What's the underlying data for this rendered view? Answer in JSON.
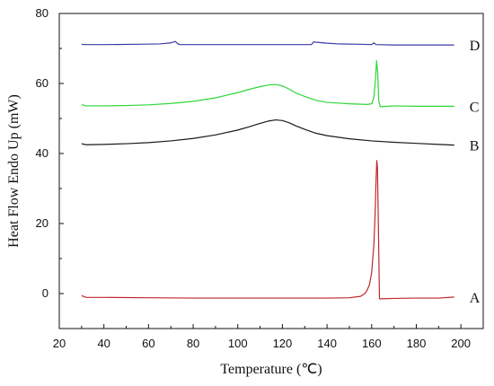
{
  "chart_data": {
    "type": "line",
    "xlabel": "Temperature (℃)",
    "ylabel": "Heat Flow Endo Up (mW)",
    "xlim": [
      20,
      210
    ],
    "ylim": [
      -10,
      80
    ],
    "xticks": [
      20,
      40,
      60,
      80,
      100,
      120,
      140,
      160,
      180,
      200
    ],
    "yticks": [
      0,
      20,
      40,
      60,
      80
    ],
    "grid": false,
    "series": [
      {
        "name": "A",
        "color": "#c0282a",
        "x": [
          30,
          32,
          40,
          60,
          80,
          100,
          120,
          140,
          150,
          155,
          157,
          158,
          159,
          160,
          161,
          161.5,
          162,
          162.3,
          162.6,
          163,
          163.5,
          164,
          170,
          180,
          190,
          197
        ],
        "y": [
          -0.6,
          -1.1,
          -1.1,
          -1.2,
          -1.3,
          -1.3,
          -1.3,
          -1.3,
          -1.2,
          -0.8,
          0,
          1,
          2.5,
          6,
          14,
          22,
          33,
          38,
          36,
          20,
          -1.5,
          -1.5,
          -1.4,
          -1.3,
          -1.3,
          -1.0
        ]
      },
      {
        "name": "B",
        "color": "#1a1a1a",
        "x": [
          30,
          32,
          40,
          50,
          60,
          70,
          80,
          90,
          100,
          105,
          110,
          114,
          117,
          120,
          123,
          126,
          130,
          135,
          140,
          150,
          160,
          170,
          180,
          190,
          197
        ],
        "y": [
          42.8,
          42.5,
          42.6,
          42.8,
          43.1,
          43.6,
          44.3,
          45.3,
          46.7,
          47.6,
          48.6,
          49.3,
          49.6,
          49.4,
          48.8,
          47.9,
          46.9,
          45.8,
          45.1,
          44.2,
          43.6,
          43.2,
          42.9,
          42.6,
          42.4
        ]
      },
      {
        "name": "C",
        "color": "#2ed63a",
        "x": [
          30,
          32,
          40,
          50,
          60,
          70,
          80,
          90,
          100,
          105,
          110,
          114,
          117,
          120,
          123,
          126,
          130,
          135,
          140,
          150,
          158,
          160,
          161,
          161.7,
          162.2,
          162.7,
          163.2,
          163.8,
          165,
          170,
          180,
          190,
          197
        ],
        "y": [
          54,
          53.6,
          53.6,
          53.7,
          53.9,
          54.3,
          54.9,
          55.9,
          57.4,
          58.3,
          59.1,
          59.6,
          59.7,
          59.3,
          58.4,
          57.3,
          56.3,
          55.2,
          54.6,
          54.2,
          54.0,
          54.2,
          56,
          61,
          66.5,
          63,
          55,
          53.4,
          53.4,
          53.6,
          53.5,
          53.5,
          53.5
        ]
      },
      {
        "name": "D",
        "color": "#3a3aa8",
        "x": [
          30,
          31,
          40,
          55,
          65,
          70,
          72,
          73,
          74,
          80,
          100,
          120,
          133,
          134,
          135,
          140,
          145,
          155,
          160,
          161,
          162,
          170,
          190,
          197
        ],
        "y": [
          71.2,
          71.1,
          71.1,
          71.2,
          71.3,
          71.6,
          72.0,
          71.4,
          71.1,
          71.1,
          71.1,
          71.1,
          71.1,
          71.9,
          71.8,
          71.5,
          71.3,
          71.2,
          71.1,
          71.6,
          71.1,
          71.0,
          71.0,
          71.0
        ]
      }
    ]
  }
}
